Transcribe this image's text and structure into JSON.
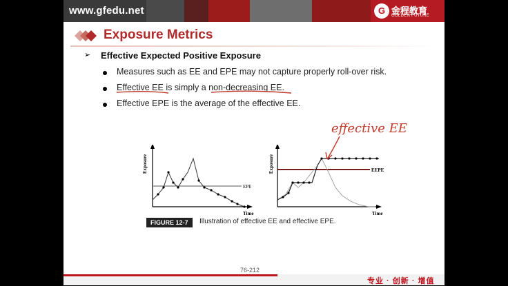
{
  "header": {
    "site_url": "www.gfedu.net",
    "logo_cn": "金程教育",
    "logo_en": "GOLDEN FUTURE",
    "logo_mark": "G"
  },
  "slide": {
    "title": "Exposure Metrics",
    "heading": "Effective Expected Positive Exposure",
    "heading_marker": "➢",
    "bullets": [
      "Measures such as EE and EPE may not capture properly roll-over risk.",
      "Effective EE is simply a non-decreasing EE.",
      "Effective EPE is the average of the effective EE."
    ],
    "figure": {
      "left_ylabel": "Exposure",
      "left_xlabel": "Time",
      "left_line_label": "EPE",
      "right_ylabel": "Exposure",
      "right_xlabel": "Time",
      "right_line_label": "EEPE",
      "caption_tag": "FIGURE 12-7",
      "caption_text": "Illustration of effective EE and effective EPE."
    },
    "handwritten_note": "effective EE",
    "page_number": "76-212"
  },
  "footer": {
    "slogan": "专业 · 创新 · 增值"
  },
  "colors": {
    "title_red": "#b02a2a",
    "brand_red": "#c0151d",
    "annotation_red": "#c0392b"
  }
}
